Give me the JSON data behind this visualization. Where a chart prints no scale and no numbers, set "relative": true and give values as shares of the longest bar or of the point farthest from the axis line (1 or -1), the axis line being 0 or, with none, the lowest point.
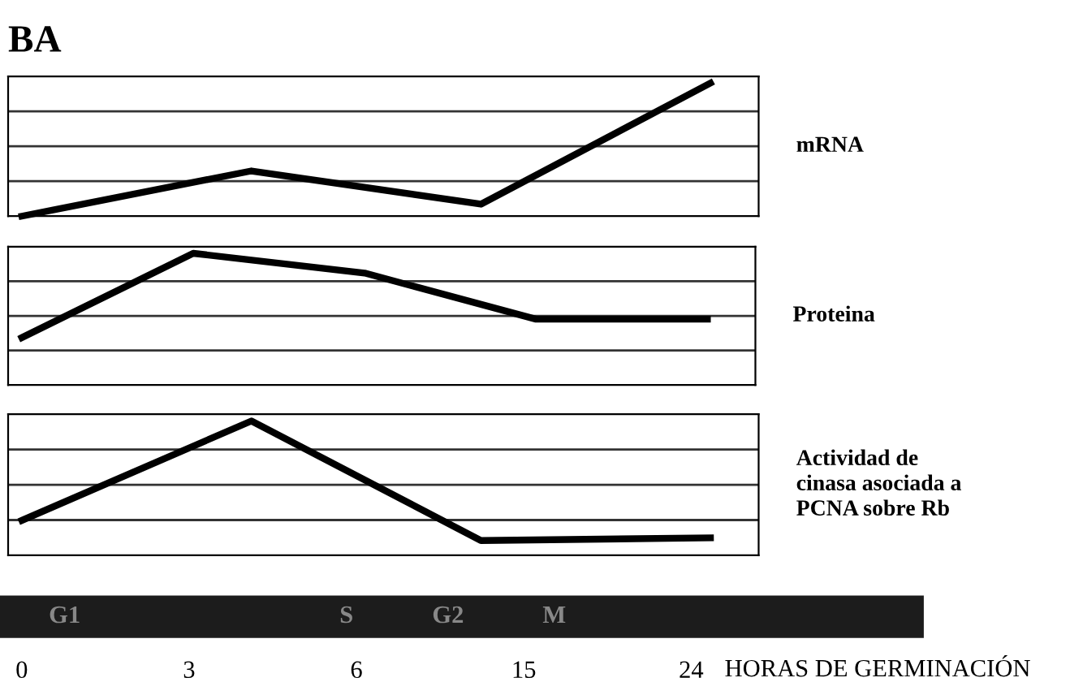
{
  "chart_data": [
    {
      "type": "line",
      "title": "BA",
      "ylabel": "mRNA",
      "relative": true,
      "grid": true,
      "categories": [
        null,
        null,
        null,
        null
      ],
      "series": [
        {
          "color": "#000000",
          "values": [
            0,
            0.34,
            0.09,
            1
          ]
        }
      ]
    },
    {
      "type": "line",
      "ylabel": "Proteina",
      "relative": true,
      "grid": true,
      "categories": [
        null,
        null,
        null,
        null,
        null
      ],
      "series": [
        {
          "color": "#000000",
          "values": [
            0.36,
            1,
            0.85,
            0.5,
            0.5
          ]
        }
      ]
    },
    {
      "type": "line",
      "ylabel": "Actividad de\ncinasa asociada a\nPCNA sobre Rb",
      "relative": true,
      "grid": true,
      "categories": [
        null,
        null,
        null,
        null
      ],
      "series": [
        {
          "color": "#000000",
          "values": [
            0.26,
            1,
            0.11,
            0.13
          ]
        }
      ]
    },
    {
      "type": "other",
      "color": "#1c1c1c",
      "annotations": [
        "G1",
        "S",
        "G2",
        "M"
      ],
      "categories": [
        "0",
        "3",
        "6",
        "15",
        "24"
      ],
      "xlabel": "HORAS DE GERMINACIÓN"
    }
  ]
}
